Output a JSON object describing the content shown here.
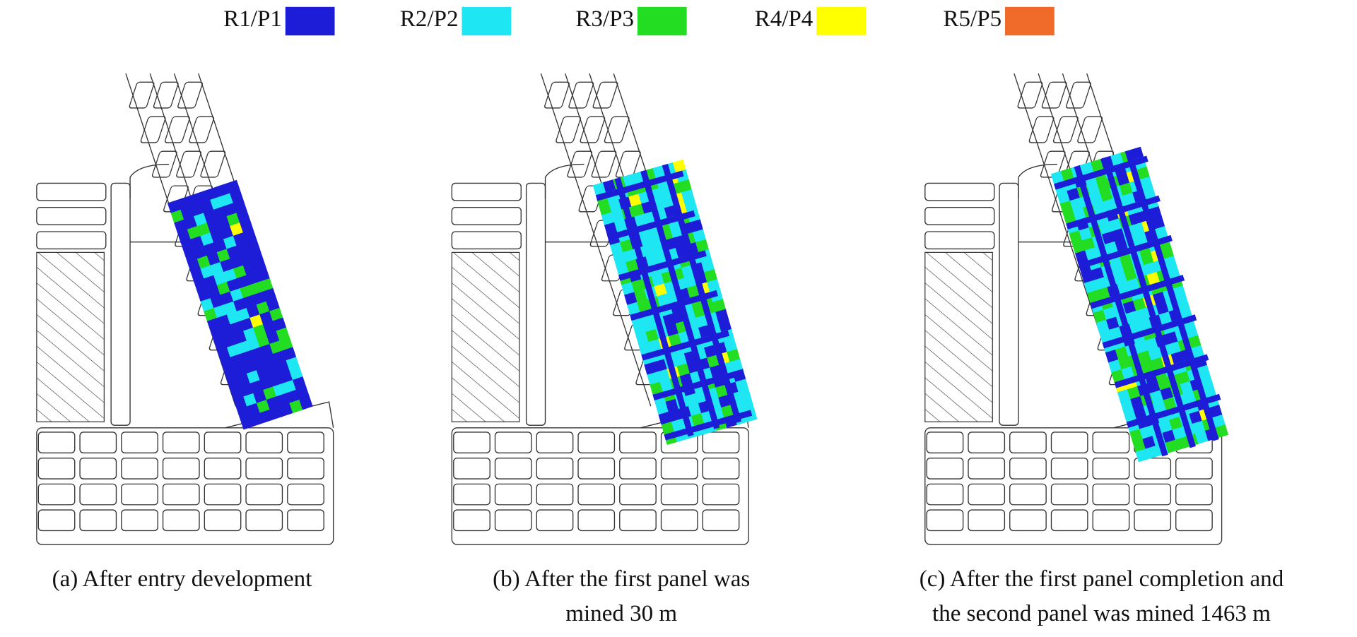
{
  "legend": [
    {
      "label": "R1/P1",
      "color": "#1d1dd8"
    },
    {
      "label": "R2/P2",
      "color": "#1ee6f2"
    },
    {
      "label": "R3/P3",
      "color": "#22dd22"
    },
    {
      "label": "R4/P4",
      "color": "#ffff00"
    },
    {
      "label": "R5/P5",
      "color": "#f06a2a"
    }
  ],
  "panels": [
    {
      "caption": [
        "(a) After entry development"
      ]
    },
    {
      "caption": [
        "(b) After the first panel was",
        "mined 30 m"
      ]
    },
    {
      "caption": [
        "(c) After the first panel completion and",
        "the second panel was mined 1463 m"
      ]
    }
  ]
}
